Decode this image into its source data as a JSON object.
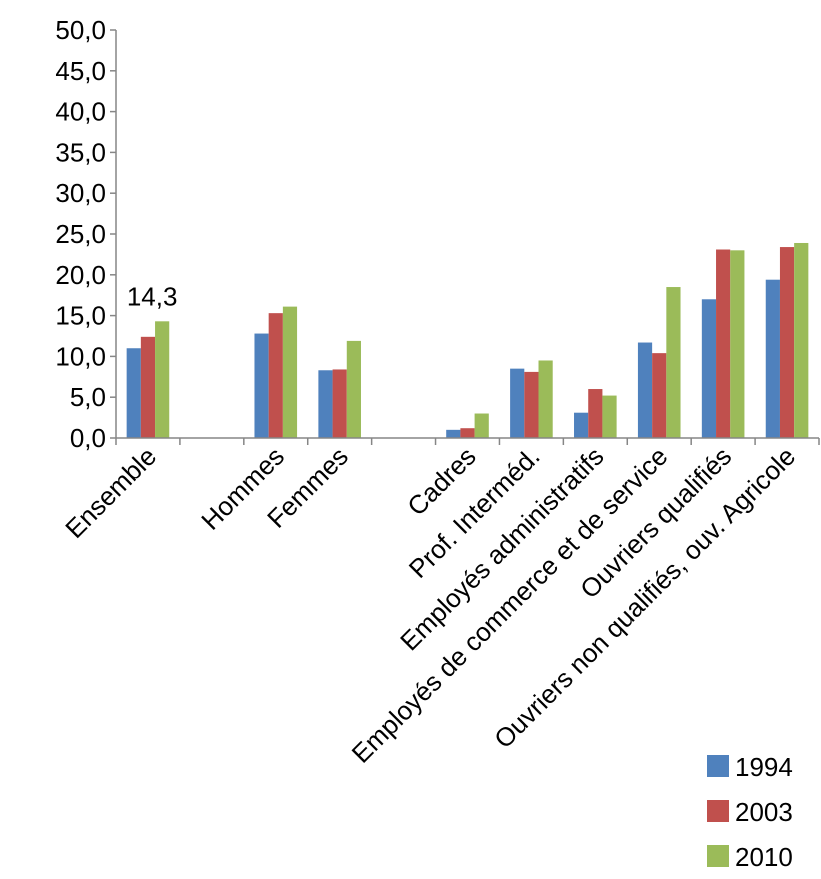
{
  "chart_data": {
    "type": "bar",
    "categories": [
      "Ensemble",
      "",
      "Hommes",
      "Femmes",
      "",
      "Cadres",
      "Prof. Interméd.",
      "Employés administratifs",
      "Employés de commerce et de service",
      "Ouvriers qualifiés",
      "Ouvriers non qualifiés, ouv. Agricole"
    ],
    "series": [
      {
        "name": "1994",
        "color": "#4F81BD",
        "values": [
          11.0,
          null,
          12.8,
          8.3,
          null,
          1.0,
          8.5,
          3.1,
          11.7,
          17.0,
          19.4
        ]
      },
      {
        "name": "2003",
        "color": "#C0504D",
        "values": [
          12.4,
          null,
          15.3,
          8.4,
          null,
          1.2,
          8.1,
          6.0,
          10.4,
          23.1,
          23.4
        ]
      },
      {
        "name": "2010",
        "color": "#9BBB59",
        "values": [
          14.3,
          null,
          16.1,
          11.9,
          null,
          3.0,
          9.5,
          5.2,
          18.5,
          23.0,
          23.9
        ]
      }
    ],
    "ylim": [
      0,
      50
    ],
    "yticks": [
      "0,0",
      "5,0",
      "10,0",
      "15,0",
      "20,0",
      "25,0",
      "30,0",
      "35,0",
      "40,0",
      "45,0",
      "50,0"
    ],
    "annotations": [
      {
        "category": "Ensemble",
        "series": "2010",
        "text": "14,3"
      }
    ],
    "grid": false,
    "legend": "bottom-right"
  }
}
